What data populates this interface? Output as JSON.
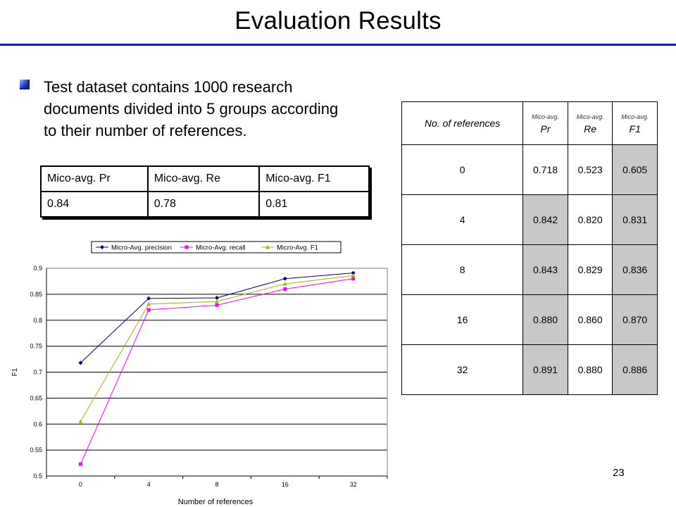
{
  "slide": {
    "title": "Evaluation Results",
    "bullet": "Test dataset contains 1000 research documents divided into 5 groups according to their number of references.",
    "page_number": "23"
  },
  "summary_table": {
    "headers": [
      "Mico-avg. Pr",
      "Mico-avg. Re",
      "Mico-avg. F1"
    ],
    "values": [
      "0.84",
      "0.78",
      "0.81"
    ]
  },
  "results_table": {
    "col0_header": "No. of references",
    "col_headers_small": [
      "Mico-avg.",
      "Mico-avg.",
      "Mico-avg."
    ],
    "col_headers_big": [
      "Pr",
      "Re",
      "F1"
    ],
    "rows": [
      [
        "0",
        "0.718",
        "0.523",
        "0.605"
      ],
      [
        "4",
        "0.842",
        "0.820",
        "0.831"
      ],
      [
        "8",
        "0.843",
        "0.829",
        "0.836"
      ],
      [
        "16",
        "0.880",
        "0.860",
        "0.870"
      ],
      [
        "32",
        "0.891",
        "0.880",
        "0.886"
      ]
    ]
  },
  "chart_data": {
    "type": "line",
    "categories": [
      "0",
      "4",
      "8",
      "16",
      "32"
    ],
    "series": [
      {
        "name": "Micro-Avg. precision",
        "values": [
          0.718,
          0.842,
          0.843,
          0.88,
          0.891
        ],
        "color": "#000080",
        "marker": "diamond"
      },
      {
        "name": "Micro-Avg. recall",
        "values": [
          0.523,
          0.82,
          0.829,
          0.86,
          0.88
        ],
        "color": "#ff00ff",
        "marker": "square"
      },
      {
        "name": "Micro-Avg. F1",
        "values": [
          0.605,
          0.831,
          0.836,
          0.87,
          0.886
        ],
        "color": "#a8b400",
        "marker": "triangle"
      }
    ],
    "xlabel": "Number of references",
    "ylabel": "F1",
    "ylim": [
      0.5,
      0.9
    ],
    "yticks": [
      "0.5",
      "0.55",
      "0.6",
      "0.65",
      "0.7",
      "0.75",
      "0.8",
      "0.85",
      "0.9"
    ],
    "grid": true,
    "legend": "top"
  }
}
